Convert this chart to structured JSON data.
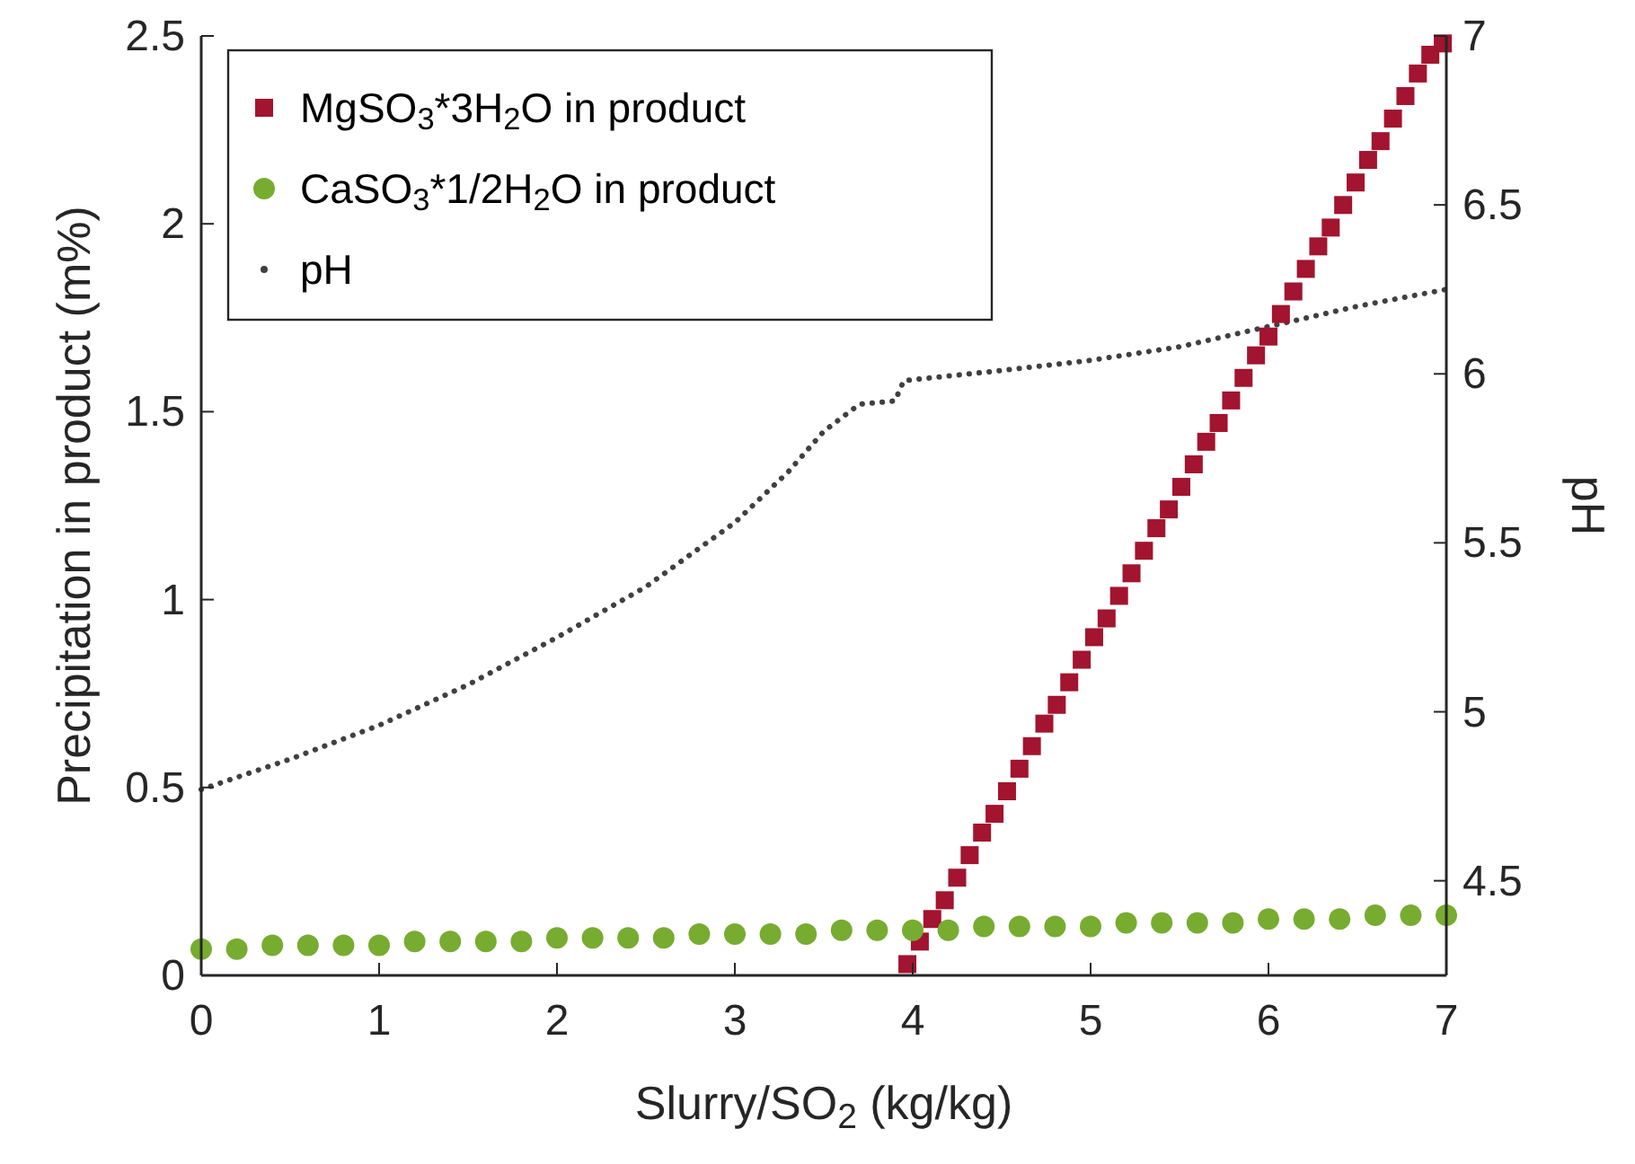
{
  "chart_data": {
    "type": "scatter",
    "xlabel": "Slurry/SO$_{2}$ (kg/kg)",
    "ylabel": "Precipitation in product (m%)",
    "y2label": "pH",
    "xlim": [
      0,
      7
    ],
    "xticks": [
      0,
      1,
      2,
      3,
      4,
      5,
      6,
      7
    ],
    "ylim": [
      0,
      2.5
    ],
    "yticks": [
      0,
      0.5,
      1,
      1.5,
      2,
      2.5
    ],
    "y2lim": [
      4.22,
      7
    ],
    "y2ticks": [
      4.5,
      5,
      5.5,
      6,
      6.5,
      7
    ],
    "legend": "top left",
    "series": [
      {
        "name": "MgSO$_{3}$*3H$_{2}$O in product",
        "color": "#a2142f",
        "marker": "square",
        "x": [
          3.97,
          4.04,
          4.11,
          4.18,
          4.25,
          4.32,
          4.39,
          4.46,
          4.53,
          4.6,
          4.67,
          4.74,
          4.81,
          4.88,
          4.95,
          5.02,
          5.09,
          5.16,
          5.23,
          5.3,
          5.37,
          5.44,
          5.51,
          5.58,
          5.65,
          5.72,
          5.79,
          5.86,
          5.93,
          6,
          6.07,
          6.14,
          6.21,
          6.28,
          6.35,
          6.42,
          6.49,
          6.56,
          6.63,
          6.7,
          6.77,
          6.84,
          6.91,
          6.98
        ],
        "values": [
          0.03,
          0.09,
          0.15,
          0.2,
          0.26,
          0.32,
          0.38,
          0.43,
          0.49,
          0.55,
          0.61,
          0.67,
          0.72,
          0.78,
          0.84,
          0.9,
          0.95,
          1.01,
          1.07,
          1.13,
          1.19,
          1.24,
          1.3,
          1.36,
          1.42,
          1.47,
          1.53,
          1.59,
          1.65,
          1.7,
          1.76,
          1.82,
          1.88,
          1.94,
          1.99,
          2.05,
          2.11,
          2.17,
          2.22,
          2.28,
          2.34,
          2.4,
          2.45,
          2.48
        ]
      },
      {
        "name": "CaSO$_{3}$*1/2H$_{2}$O in product",
        "color": "#77ac30",
        "marker": "circle",
        "x": [
          0,
          0.2,
          0.4,
          0.6,
          0.8,
          1,
          1.2,
          1.4,
          1.6,
          1.8,
          2,
          2.2,
          2.4,
          2.6,
          2.8,
          3,
          3.2,
          3.4,
          3.6,
          3.8,
          4,
          4.2,
          4.4,
          4.6,
          4.8,
          5,
          5.2,
          5.4,
          5.6,
          5.8,
          6,
          6.2,
          6.4,
          6.6,
          6.8,
          7
        ],
        "values": [
          0.07,
          0.07,
          0.08,
          0.08,
          0.08,
          0.08,
          0.09,
          0.09,
          0.09,
          0.09,
          0.1,
          0.1,
          0.1,
          0.1,
          0.11,
          0.11,
          0.11,
          0.11,
          0.12,
          0.12,
          0.12,
          0.12,
          0.13,
          0.13,
          0.13,
          0.13,
          0.14,
          0.14,
          0.14,
          0.14,
          0.15,
          0.15,
          0.15,
          0.16,
          0.16,
          0.16
        ]
      },
      {
        "type": "line",
        "name": "pH",
        "color": "#404040",
        "axis": "y2",
        "marker": "none",
        "line_style": "dotted",
        "x": [
          0,
          0.5,
          1,
          1.5,
          2,
          2.5,
          3,
          3.3,
          3.5,
          3.7,
          3.9,
          3.95,
          4.5,
          5,
          5.5,
          6,
          6.5,
          7
        ],
        "values": [
          4.77,
          4.86,
          4.96,
          5.08,
          5.22,
          5.37,
          5.56,
          5.71,
          5.83,
          5.91,
          5.92,
          5.98,
          6.01,
          6.04,
          6.08,
          6.14,
          6.2,
          6.25
        ]
      }
    ]
  }
}
